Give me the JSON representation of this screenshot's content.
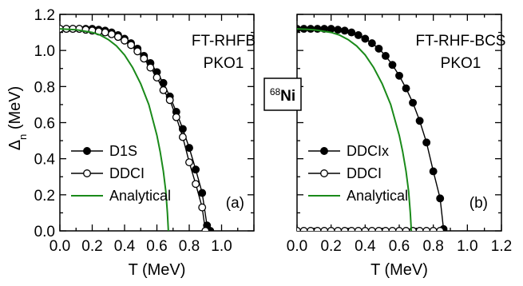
{
  "colors": {
    "analytical": "#1a8a1a",
    "axis": "#000000",
    "marker": "#000000"
  },
  "y_axis_title": {
    "symbol": "Δ",
    "subscript": "n",
    "unit": " (MeV)"
  },
  "nucleus_tag": {
    "mass": "68",
    "element": "Ni"
  },
  "chart_data": [
    {
      "type": "line",
      "panel_id": "a",
      "panel_label": "(a)",
      "annotation_lines": [
        "FT-RHFB",
        "PKO1"
      ],
      "xlabel": "T (MeV)",
      "xlim": [
        0.0,
        1.2
      ],
      "ylim": [
        0.0,
        1.2
      ],
      "xticks": [
        "0.0",
        "0.2",
        "0.4",
        "0.6",
        "0.8",
        "1.0"
      ],
      "yticks": [
        "0.0",
        "0.2",
        "0.4",
        "0.6",
        "0.8",
        "1.0",
        "1.2"
      ],
      "legend_position": "bottom-left",
      "series": [
        {
          "name": "D1S",
          "marker": "filled-circle",
          "x": [
            0.0,
            0.04,
            0.08,
            0.12,
            0.16,
            0.2,
            0.24,
            0.28,
            0.32,
            0.36,
            0.4,
            0.44,
            0.48,
            0.52,
            0.56,
            0.6,
            0.64,
            0.68,
            0.72,
            0.76,
            0.8,
            0.84,
            0.88,
            0.91,
            0.93
          ],
          "y": [
            1.12,
            1.12,
            1.12,
            1.12,
            1.12,
            1.12,
            1.115,
            1.11,
            1.1,
            1.085,
            1.065,
            1.04,
            1.01,
            0.97,
            0.93,
            0.88,
            0.82,
            0.745,
            0.66,
            0.565,
            0.46,
            0.34,
            0.21,
            0.03,
            0.0
          ]
        },
        {
          "name": "DDCI",
          "marker": "open-circle",
          "x": [
            0.0,
            0.04,
            0.08,
            0.12,
            0.16,
            0.2,
            0.24,
            0.28,
            0.32,
            0.36,
            0.4,
            0.44,
            0.48,
            0.52,
            0.56,
            0.6,
            0.64,
            0.68,
            0.72,
            0.76,
            0.8,
            0.84,
            0.88,
            0.9
          ],
          "y": [
            1.12,
            1.12,
            1.12,
            1.12,
            1.115,
            1.11,
            1.105,
            1.1,
            1.09,
            1.075,
            1.055,
            1.03,
            0.995,
            0.955,
            0.905,
            0.85,
            0.78,
            0.725,
            0.63,
            0.52,
            0.38,
            0.26,
            0.13,
            0.0
          ]
        },
        {
          "name": "Analytical",
          "marker": "none",
          "x": [
            0.0,
            0.1,
            0.2,
            0.25,
            0.3,
            0.35,
            0.4,
            0.45,
            0.5,
            0.55,
            0.6,
            0.62,
            0.64,
            0.655,
            0.665,
            0.671
          ],
          "y": [
            1.12,
            1.115,
            1.1,
            1.085,
            1.06,
            1.025,
            0.975,
            0.905,
            0.815,
            0.7,
            0.53,
            0.44,
            0.33,
            0.22,
            0.1,
            0.0
          ]
        }
      ]
    },
    {
      "type": "line",
      "panel_id": "b",
      "panel_label": "(b)",
      "annotation_lines": [
        "FT-RHF-BCS",
        "PKO1"
      ],
      "xlabel": "T (MeV)",
      "xlim": [
        0.0,
        1.2
      ],
      "ylim": [
        0.0,
        1.2
      ],
      "xticks": [
        "0.0",
        "0.2",
        "0.4",
        "0.6",
        "0.8",
        "1.0",
        "1.2"
      ],
      "yticks": [],
      "legend_position": "bottom-left",
      "series": [
        {
          "name": "DDCIx",
          "marker": "filled-circle",
          "x": [
            0.0,
            0.04,
            0.08,
            0.12,
            0.16,
            0.2,
            0.24,
            0.28,
            0.32,
            0.36,
            0.4,
            0.44,
            0.48,
            0.52,
            0.56,
            0.6,
            0.64,
            0.68,
            0.72,
            0.76,
            0.8,
            0.84,
            0.86
          ],
          "y": [
            1.12,
            1.12,
            1.12,
            1.12,
            1.12,
            1.12,
            1.115,
            1.11,
            1.1,
            1.085,
            1.065,
            1.04,
            1.01,
            0.97,
            0.92,
            0.86,
            0.79,
            0.71,
            0.61,
            0.49,
            0.33,
            0.18,
            0.01
          ]
        },
        {
          "name": "DDCI",
          "marker": "open-circle",
          "x": [
            0.0,
            0.04,
            0.08,
            0.12,
            0.16,
            0.2,
            0.24,
            0.28,
            0.32,
            0.36,
            0.4,
            0.44,
            0.48,
            0.52,
            0.56,
            0.6,
            0.64,
            0.68,
            0.72,
            0.76,
            0.8,
            0.84
          ],
          "y": [
            0.0,
            0.0,
            0.0,
            0.0,
            0.0,
            0.0,
            0.0,
            0.0,
            0.0,
            0.0,
            0.0,
            0.0,
            0.0,
            0.0,
            0.0,
            0.0,
            0.0,
            0.0,
            0.0,
            0.0,
            0.0,
            0.0
          ]
        },
        {
          "name": "Analytical",
          "marker": "none",
          "x": [
            0.0,
            0.1,
            0.2,
            0.25,
            0.3,
            0.35,
            0.4,
            0.45,
            0.5,
            0.55,
            0.6,
            0.62,
            0.64,
            0.655,
            0.665,
            0.671
          ],
          "y": [
            1.12,
            1.115,
            1.1,
            1.085,
            1.06,
            1.025,
            0.975,
            0.905,
            0.815,
            0.7,
            0.53,
            0.44,
            0.33,
            0.22,
            0.1,
            0.0
          ]
        }
      ]
    }
  ]
}
